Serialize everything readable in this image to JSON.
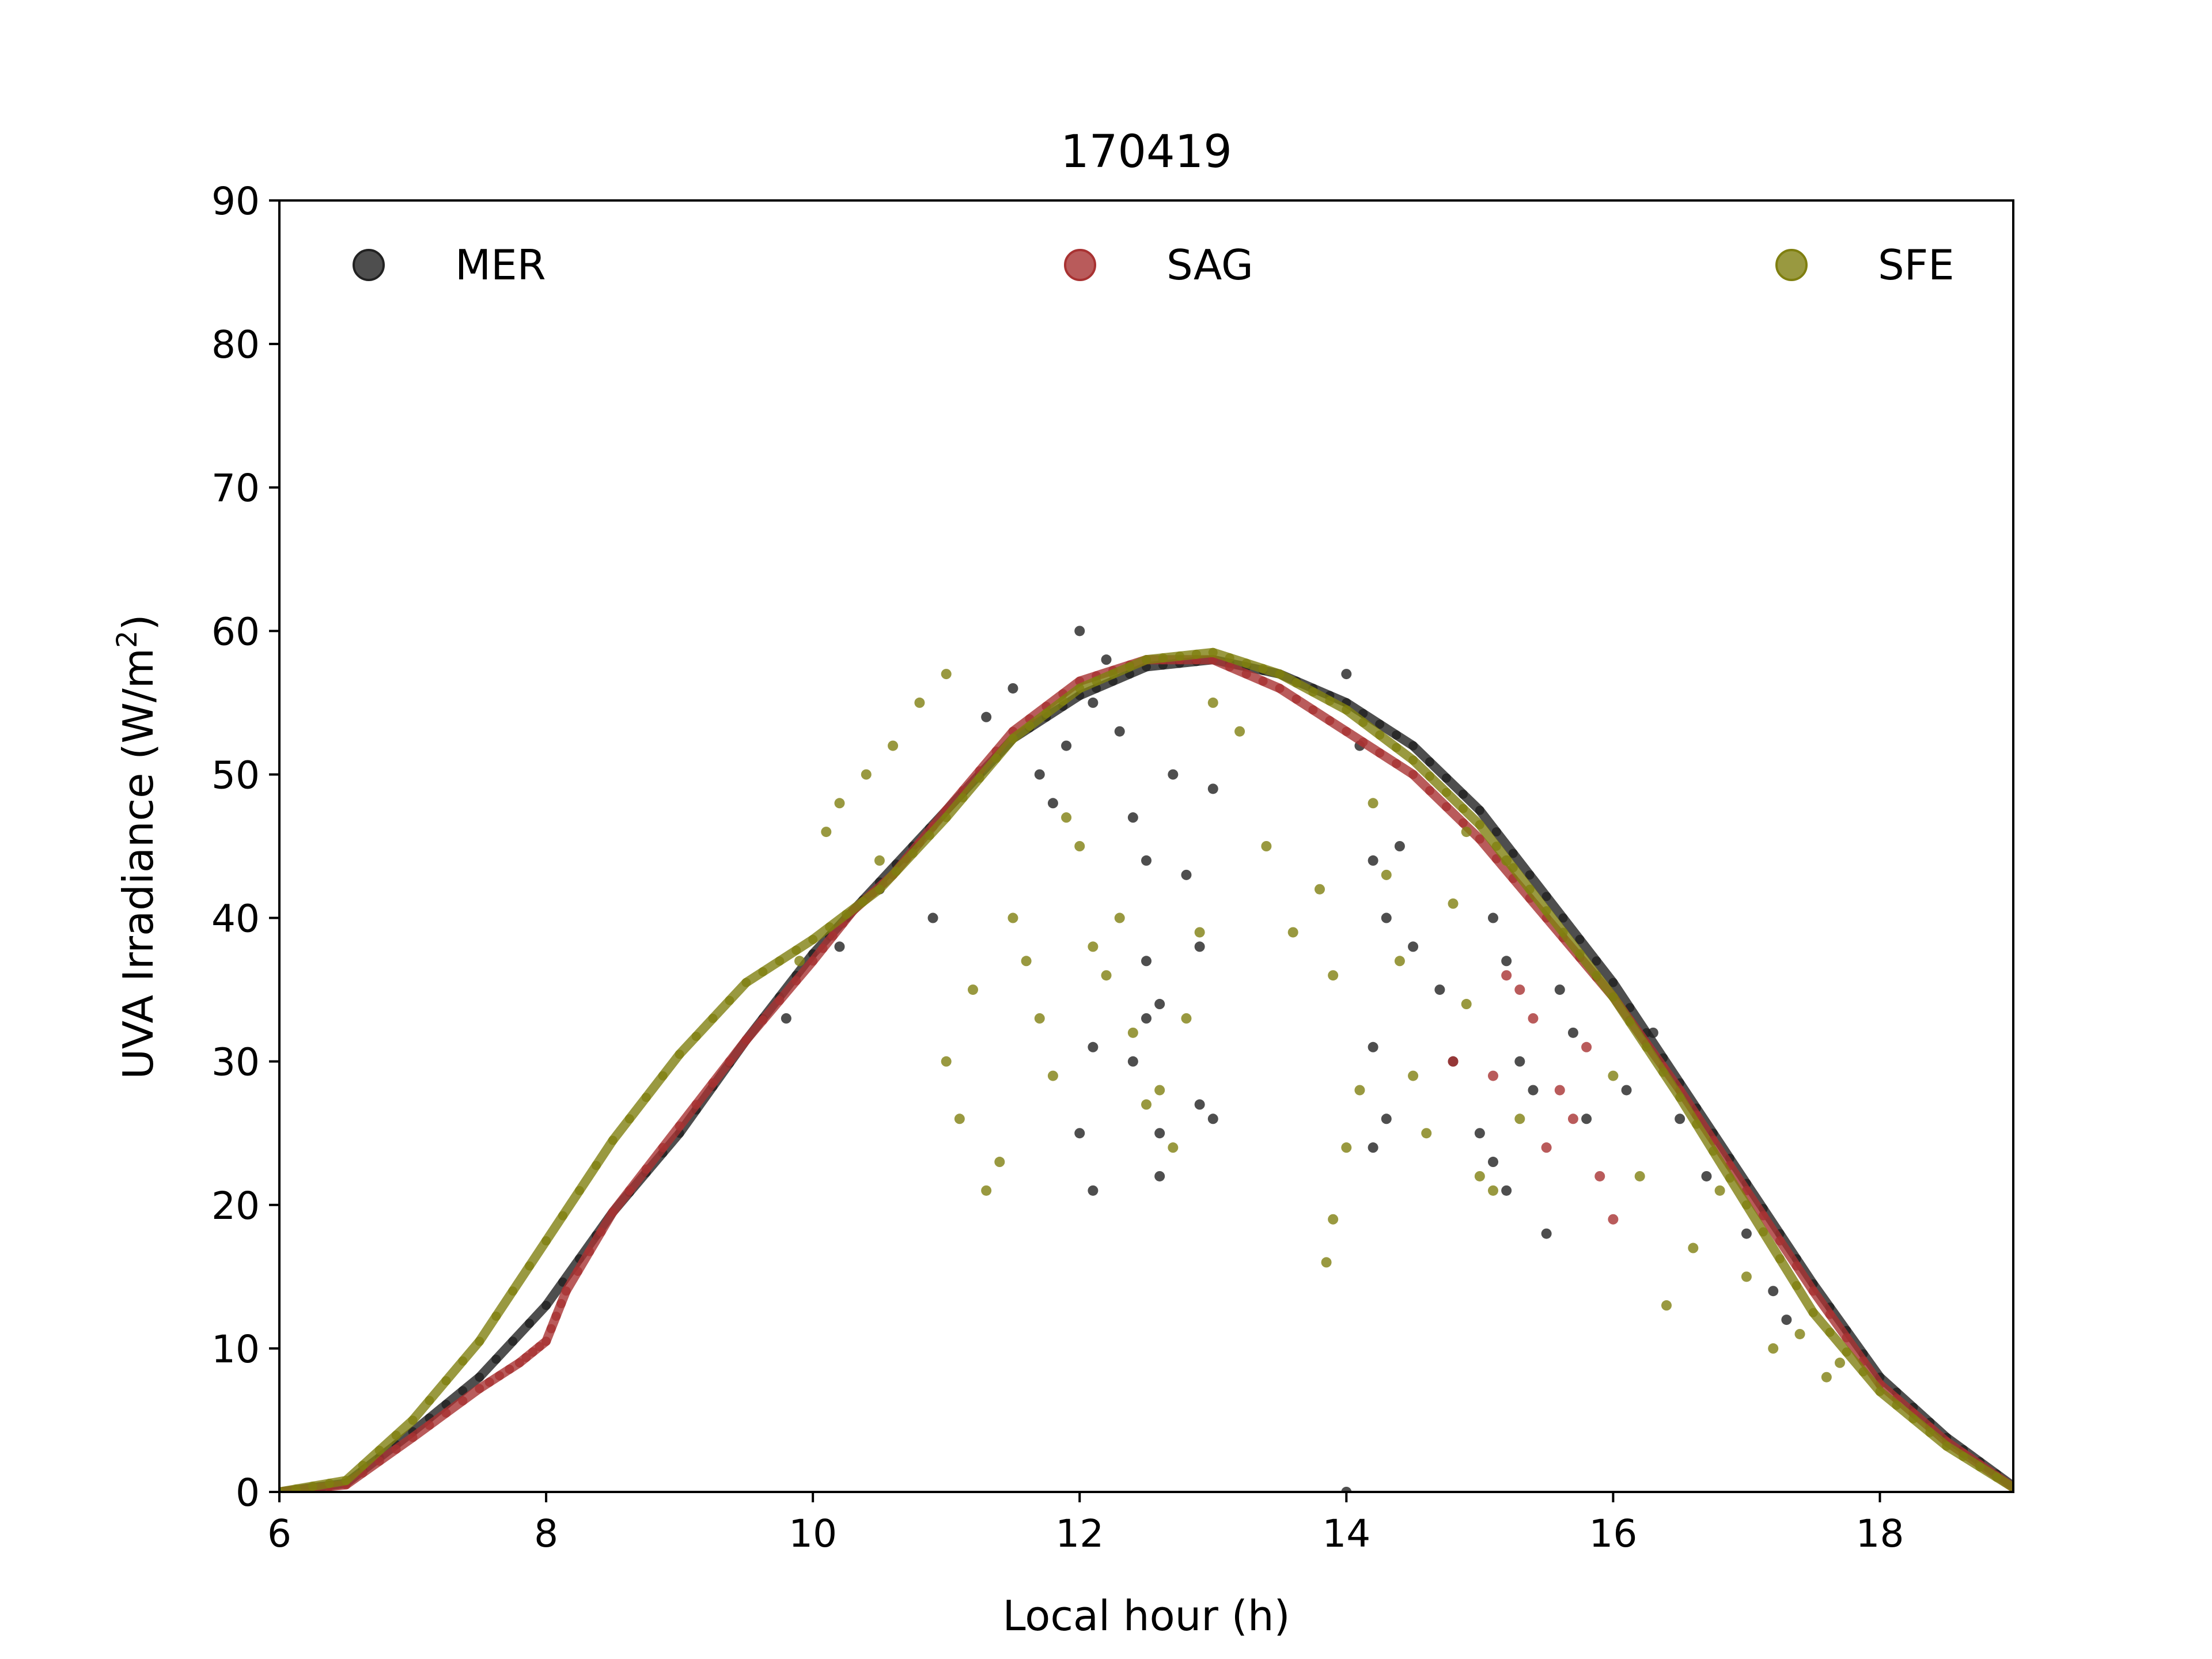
{
  "chart_data": {
    "type": "scatter",
    "title": "170419",
    "xlabel": "Local hour (h)",
    "ylabel_main": "UVA Irradiance (W/m",
    "ylabel_sup": "2",
    "ylabel_close": ")",
    "xlim": [
      6,
      19
    ],
    "ylim": [
      0,
      90
    ],
    "xticks": [
      6,
      8,
      10,
      12,
      14,
      16,
      18
    ],
    "yticks": [
      0,
      10,
      20,
      30,
      40,
      50,
      60,
      70,
      80,
      90
    ],
    "grid": false,
    "legend_position": "top (single row)",
    "series": [
      {
        "name": "MER",
        "color": "#222222",
        "clear_sky": [
          [
            6.0,
            0
          ],
          [
            6.5,
            0.6
          ],
          [
            7.0,
            4.2
          ],
          [
            7.5,
            8.0
          ],
          [
            8.0,
            13.0
          ],
          [
            8.5,
            19.5
          ],
          [
            9.0,
            25.0
          ],
          [
            9.5,
            31.5
          ],
          [
            10.0,
            37.5
          ],
          [
            10.5,
            42.5
          ],
          [
            11.0,
            47.5
          ],
          [
            11.5,
            52.5
          ],
          [
            12.0,
            55.5
          ],
          [
            12.5,
            57.5
          ],
          [
            13.0,
            58.0
          ],
          [
            13.5,
            57.0
          ],
          [
            14.0,
            55.0
          ],
          [
            14.5,
            52.0
          ],
          [
            15.0,
            47.5
          ],
          [
            15.5,
            41.5
          ],
          [
            16.0,
            35.5
          ],
          [
            16.5,
            28.5
          ],
          [
            17.0,
            21.5
          ],
          [
            17.5,
            14.5
          ],
          [
            18.0,
            8.0
          ],
          [
            18.5,
            3.8
          ],
          [
            19.0,
            0.4
          ]
        ],
        "scatter": [
          [
            9.8,
            33
          ],
          [
            10.2,
            38
          ],
          [
            10.5,
            42
          ],
          [
            10.9,
            40
          ],
          [
            11.3,
            54
          ],
          [
            11.5,
            56
          ],
          [
            11.7,
            50
          ],
          [
            11.8,
            48
          ],
          [
            11.9,
            52
          ],
          [
            12.0,
            60
          ],
          [
            12.1,
            55
          ],
          [
            12.2,
            58
          ],
          [
            12.3,
            53
          ],
          [
            12.4,
            47
          ],
          [
            12.5,
            44
          ],
          [
            12.5,
            37
          ],
          [
            12.6,
            34
          ],
          [
            12.4,
            30
          ],
          [
            12.6,
            25
          ],
          [
            12.7,
            50
          ],
          [
            12.8,
            43
          ],
          [
            12.9,
            38
          ],
          [
            13.0,
            49
          ],
          [
            13.0,
            26
          ],
          [
            12.1,
            21
          ],
          [
            12.0,
            25
          ],
          [
            12.1,
            31
          ],
          [
            12.5,
            33
          ],
          [
            12.6,
            22
          ],
          [
            12.9,
            27
          ],
          [
            14.0,
            57
          ],
          [
            14.1,
            52
          ],
          [
            14.2,
            44
          ],
          [
            14.3,
            40
          ],
          [
            14.2,
            31
          ],
          [
            14.3,
            26
          ],
          [
            14.2,
            24
          ],
          [
            14.4,
            45
          ],
          [
            14.5,
            38
          ],
          [
            14.7,
            35
          ],
          [
            14.8,
            30
          ],
          [
            15.1,
            40
          ],
          [
            15.2,
            37
          ],
          [
            15.0,
            25
          ],
          [
            15.1,
            23
          ],
          [
            15.2,
            21
          ],
          [
            15.3,
            30
          ],
          [
            15.4,
            28
          ],
          [
            15.5,
            18
          ],
          [
            15.6,
            35
          ],
          [
            15.7,
            32
          ],
          [
            15.8,
            26
          ],
          [
            16.1,
            28
          ],
          [
            16.3,
            32
          ],
          [
            16.5,
            26
          ],
          [
            16.7,
            22
          ],
          [
            17.0,
            18
          ],
          [
            17.2,
            14
          ],
          [
            17.3,
            12
          ],
          [
            14.0,
            0
          ]
        ]
      },
      {
        "name": "SAG",
        "color": "#a83232",
        "clear_sky": [
          [
            6.0,
            0
          ],
          [
            6.5,
            0.5
          ],
          [
            7.0,
            3.8
          ],
          [
            7.5,
            7.2
          ],
          [
            7.8,
            9.0
          ],
          [
            8.0,
            10.5
          ],
          [
            8.15,
            14.0
          ],
          [
            8.5,
            19.5
          ],
          [
            9.0,
            25.5
          ],
          [
            9.5,
            31.5
          ],
          [
            10.0,
            37.0
          ],
          [
            10.3,
            40.5
          ],
          [
            10.6,
            43.0
          ],
          [
            11.0,
            47.5
          ],
          [
            11.5,
            53.0
          ],
          [
            12.0,
            56.5
          ],
          [
            12.5,
            58.0
          ],
          [
            13.0,
            58.0
          ],
          [
            13.5,
            56.0
          ],
          [
            14.0,
            53.0
          ],
          [
            14.5,
            50.0
          ],
          [
            15.0,
            45.5
          ],
          [
            15.5,
            40.0
          ],
          [
            16.0,
            34.5
          ],
          [
            16.5,
            28.0
          ],
          [
            17.0,
            21.0
          ],
          [
            17.5,
            14.0
          ],
          [
            18.0,
            7.5
          ],
          [
            18.5,
            3.5
          ],
          [
            19.0,
            0.3
          ]
        ],
        "scatter": [
          [
            15.2,
            36
          ],
          [
            15.4,
            33
          ],
          [
            15.6,
            28
          ],
          [
            15.8,
            31
          ],
          [
            15.9,
            22
          ],
          [
            16.0,
            19
          ],
          [
            15.7,
            26
          ],
          [
            14.8,
            30
          ],
          [
            15.1,
            29
          ],
          [
            15.5,
            24
          ],
          [
            15.3,
            35
          ]
        ]
      },
      {
        "name": "SFE",
        "color": "#7f7f10",
        "clear_sky": [
          [
            6.0,
            0
          ],
          [
            6.5,
            0.8
          ],
          [
            7.0,
            5.0
          ],
          [
            7.5,
            10.5
          ],
          [
            8.0,
            17.5
          ],
          [
            8.5,
            24.5
          ],
          [
            9.0,
            30.5
          ],
          [
            9.5,
            35.5
          ],
          [
            10.0,
            38.5
          ],
          [
            10.5,
            42.0
          ],
          [
            11.0,
            47.0
          ],
          [
            11.5,
            52.5
          ],
          [
            12.0,
            56.0
          ],
          [
            12.5,
            58.0
          ],
          [
            13.0,
            58.5
          ],
          [
            13.5,
            57.0
          ],
          [
            14.0,
            54.5
          ],
          [
            14.5,
            51.0
          ],
          [
            15.0,
            46.5
          ],
          [
            15.5,
            40.5
          ],
          [
            16.0,
            34.5
          ],
          [
            16.5,
            27.5
          ],
          [
            17.0,
            20.0
          ],
          [
            17.5,
            12.5
          ],
          [
            18.0,
            7.0
          ],
          [
            18.5,
            3.2
          ],
          [
            19.0,
            0.3
          ]
        ],
        "scatter": [
          [
            9.9,
            37
          ],
          [
            10.1,
            46
          ],
          [
            10.2,
            48
          ],
          [
            10.4,
            50
          ],
          [
            10.6,
            52
          ],
          [
            10.8,
            55
          ],
          [
            11.0,
            57
          ],
          [
            10.5,
            44
          ],
          [
            11.0,
            30
          ],
          [
            11.1,
            26
          ],
          [
            11.2,
            35
          ],
          [
            11.3,
            21
          ],
          [
            11.4,
            23
          ],
          [
            11.5,
            40
          ],
          [
            11.6,
            37
          ],
          [
            11.7,
            33
          ],
          [
            11.8,
            29
          ],
          [
            11.9,
            47
          ],
          [
            12.0,
            45
          ],
          [
            12.1,
            38
          ],
          [
            12.2,
            36
          ],
          [
            12.3,
            40
          ],
          [
            12.4,
            32
          ],
          [
            12.5,
            27
          ],
          [
            12.6,
            28
          ],
          [
            12.7,
            24
          ],
          [
            12.8,
            33
          ],
          [
            12.9,
            39
          ],
          [
            13.0,
            55
          ],
          [
            13.2,
            53
          ],
          [
            13.4,
            45
          ],
          [
            13.6,
            39
          ],
          [
            13.8,
            42
          ],
          [
            13.9,
            36
          ],
          [
            13.85,
            16
          ],
          [
            13.9,
            19
          ],
          [
            14.0,
            24
          ],
          [
            14.1,
            28
          ],
          [
            14.2,
            48
          ],
          [
            14.3,
            43
          ],
          [
            14.4,
            37
          ],
          [
            14.5,
            29
          ],
          [
            14.6,
            25
          ],
          [
            14.8,
            41
          ],
          [
            14.9,
            34
          ],
          [
            15.0,
            22
          ],
          [
            15.1,
            21
          ],
          [
            15.3,
            26
          ],
          [
            16.0,
            29
          ],
          [
            16.2,
            22
          ],
          [
            16.4,
            13
          ],
          [
            16.6,
            17
          ],
          [
            16.8,
            21
          ],
          [
            17.0,
            15
          ],
          [
            17.2,
            10
          ],
          [
            17.4,
            11
          ],
          [
            17.6,
            8
          ],
          [
            17.7,
            9
          ],
          [
            14.9,
            46
          ],
          [
            15.2,
            44
          ]
        ]
      }
    ]
  }
}
